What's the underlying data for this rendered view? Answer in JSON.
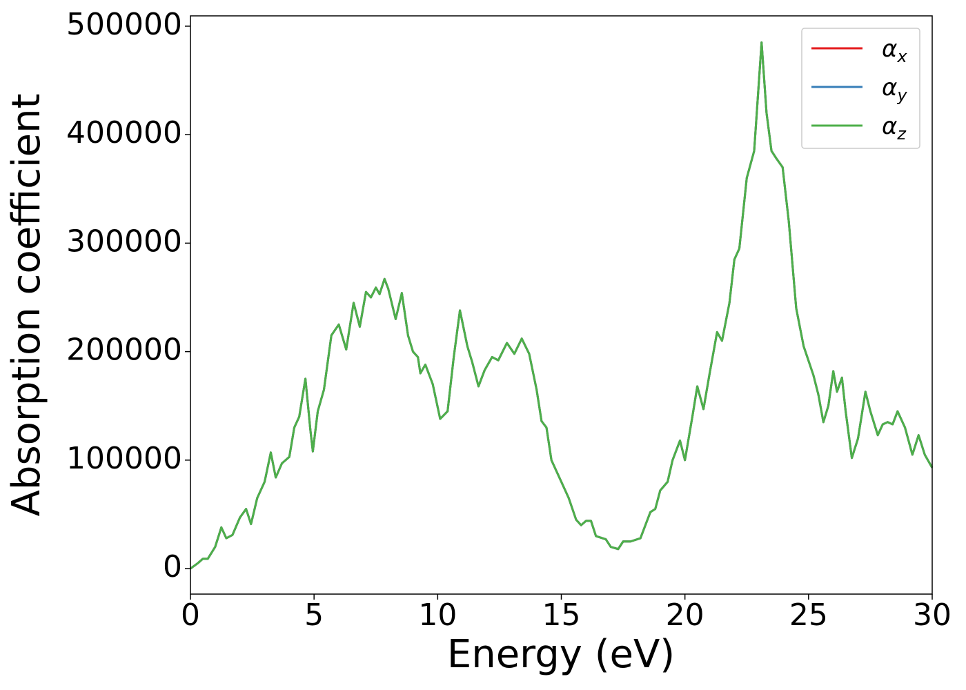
{
  "chart_data": {
    "type": "line",
    "xlabel": "Energy (eV)",
    "ylabel": "Absorption coefficient",
    "xlim": [
      0,
      30
    ],
    "xticks": [
      0,
      5,
      10,
      15,
      20,
      25,
      30
    ],
    "ylim": [
      -23500,
      509500
    ],
    "yticks": [
      0,
      100000,
      200000,
      300000,
      400000,
      500000
    ],
    "grid": false,
    "legend": "upper right",
    "x": [
      0,
      0.3,
      0.5,
      0.7,
      1.0,
      1.25,
      1.45,
      1.7,
      2.0,
      2.25,
      2.45,
      2.7,
      3.0,
      3.25,
      3.45,
      3.7,
      4.0,
      4.2,
      4.4,
      4.65,
      4.85,
      4.95,
      5.15,
      5.4,
      5.7,
      6.0,
      6.3,
      6.6,
      6.85,
      7.1,
      7.3,
      7.5,
      7.65,
      7.85,
      8.0,
      8.3,
      8.55,
      8.8,
      9.0,
      9.2,
      9.3,
      9.5,
      9.8,
      10.1,
      10.4,
      10.65,
      10.9,
      11.2,
      11.4,
      11.65,
      11.9,
      12.2,
      12.45,
      12.8,
      13.1,
      13.4,
      13.7,
      14.0,
      14.2,
      14.4,
      14.6,
      15.0,
      15.3,
      15.6,
      15.8,
      16.0,
      16.2,
      16.4,
      16.8,
      17.0,
      17.3,
      17.5,
      17.8,
      18.2,
      18.6,
      18.8,
      19.0,
      19.3,
      19.5,
      19.8,
      20.0,
      20.3,
      20.5,
      20.75,
      21.0,
      21.3,
      21.5,
      21.8,
      22.0,
      22.2,
      22.5,
      22.8,
      23.1,
      23.3,
      23.5,
      23.7,
      23.95,
      24.2,
      24.5,
      24.8,
      25.2,
      25.4,
      25.6,
      25.8,
      26.0,
      26.15,
      26.35,
      26.5,
      26.75,
      27.0,
      27.3,
      27.5,
      27.8,
      28.0,
      28.2,
      28.4,
      28.6,
      28.9,
      29.2,
      29.45,
      29.7,
      30.0
    ],
    "series": [
      {
        "name": "αx",
        "color": "#e41a1c",
        "values": [
          0,
          5000,
          9000,
          9000,
          20000,
          38000,
          28000,
          31000,
          47000,
          55000,
          41000,
          65000,
          80000,
          107000,
          84000,
          97000,
          103000,
          130000,
          140000,
          175000,
          128000,
          108000,
          145000,
          165000,
          215000,
          225000,
          202000,
          245000,
          223000,
          255000,
          250000,
          259000,
          253000,
          267000,
          258000,
          230000,
          254000,
          215000,
          200000,
          195000,
          180000,
          188000,
          170000,
          138000,
          145000,
          195000,
          238000,
          205000,
          190000,
          168000,
          183000,
          195000,
          192000,
          208000,
          198000,
          212000,
          198000,
          165000,
          136000,
          130000,
          100000,
          80000,
          65000,
          45000,
          40000,
          44000,
          44000,
          30000,
          27000,
          20000,
          18000,
          25000,
          25000,
          28000,
          52000,
          55000,
          72000,
          80000,
          100000,
          118000,
          100000,
          140000,
          168000,
          147000,
          180000,
          218000,
          210000,
          245000,
          285000,
          295000,
          360000,
          385000,
          485000,
          420000,
          385000,
          378000,
          370000,
          320000,
          240000,
          205000,
          178000,
          160000,
          135000,
          150000,
          182000,
          163000,
          176000,
          145000,
          102000,
          120000,
          163000,
          145000,
          123000,
          133000,
          135000,
          133000,
          145000,
          130000,
          105000,
          123000,
          105000,
          93000
        ]
      },
      {
        "name": "αy",
        "color": "#377eb8",
        "values": [
          0,
          5000,
          9000,
          9000,
          20000,
          38000,
          28000,
          31000,
          47000,
          55000,
          41000,
          65000,
          80000,
          107000,
          84000,
          97000,
          103000,
          130000,
          140000,
          175000,
          128000,
          108000,
          145000,
          165000,
          215000,
          225000,
          202000,
          245000,
          223000,
          255000,
          250000,
          259000,
          253000,
          267000,
          258000,
          230000,
          254000,
          215000,
          200000,
          195000,
          180000,
          188000,
          170000,
          138000,
          145000,
          195000,
          238000,
          205000,
          190000,
          168000,
          183000,
          195000,
          192000,
          208000,
          198000,
          212000,
          198000,
          165000,
          136000,
          130000,
          100000,
          80000,
          65000,
          45000,
          40000,
          44000,
          44000,
          30000,
          27000,
          20000,
          18000,
          25000,
          25000,
          28000,
          52000,
          55000,
          72000,
          80000,
          100000,
          118000,
          100000,
          140000,
          168000,
          147000,
          180000,
          218000,
          210000,
          245000,
          285000,
          295000,
          360000,
          385000,
          485000,
          420000,
          385000,
          378000,
          370000,
          320000,
          240000,
          205000,
          178000,
          160000,
          135000,
          150000,
          182000,
          163000,
          176000,
          145000,
          102000,
          120000,
          163000,
          145000,
          123000,
          133000,
          135000,
          133000,
          145000,
          130000,
          105000,
          123000,
          105000,
          93000
        ]
      },
      {
        "name": "αz",
        "color": "#4daf4a",
        "values": [
          0,
          5000,
          9000,
          9000,
          20000,
          38000,
          28000,
          31000,
          47000,
          55000,
          41000,
          65000,
          80000,
          107000,
          84000,
          97000,
          103000,
          130000,
          140000,
          175000,
          128000,
          108000,
          145000,
          165000,
          215000,
          225000,
          202000,
          245000,
          223000,
          255000,
          250000,
          259000,
          253000,
          267000,
          258000,
          230000,
          254000,
          215000,
          200000,
          195000,
          180000,
          188000,
          170000,
          138000,
          145000,
          195000,
          238000,
          205000,
          190000,
          168000,
          183000,
          195000,
          192000,
          208000,
          198000,
          212000,
          198000,
          165000,
          136000,
          130000,
          100000,
          80000,
          65000,
          45000,
          40000,
          44000,
          44000,
          30000,
          27000,
          20000,
          18000,
          25000,
          25000,
          28000,
          52000,
          55000,
          72000,
          80000,
          100000,
          118000,
          100000,
          140000,
          168000,
          147000,
          180000,
          218000,
          210000,
          245000,
          285000,
          295000,
          360000,
          385000,
          485000,
          420000,
          385000,
          378000,
          370000,
          320000,
          240000,
          205000,
          178000,
          160000,
          135000,
          150000,
          182000,
          163000,
          176000,
          145000,
          102000,
          120000,
          163000,
          145000,
          123000,
          133000,
          135000,
          133000,
          145000,
          130000,
          105000,
          123000,
          105000,
          93000
        ]
      }
    ]
  }
}
